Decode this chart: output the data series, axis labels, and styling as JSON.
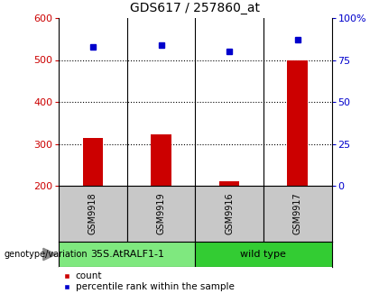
{
  "title": "GDS617 / 257860_at",
  "samples": [
    "GSM9918",
    "GSM9919",
    "GSM9916",
    "GSM9917"
  ],
  "count_values": [
    315,
    322,
    210,
    500
  ],
  "percentile_values": [
    83,
    84,
    80,
    87
  ],
  "groups": [
    {
      "label": "35S.AtRALF1-1",
      "color": "#7FE87F",
      "samples": [
        0,
        1
      ]
    },
    {
      "label": "wild type",
      "color": "#33CC33",
      "samples": [
        2,
        3
      ]
    }
  ],
  "ylim_left": [
    200,
    600
  ],
  "left_ticks": [
    200,
    300,
    400,
    500,
    600
  ],
  "right_ticks": [
    0,
    25,
    50,
    75,
    100
  ],
  "right_tick_labels": [
    "0",
    "25",
    "50",
    "75",
    "100%"
  ],
  "bar_color": "#cc0000",
  "dot_color": "#0000cc",
  "left_tick_color": "#cc0000",
  "right_tick_color": "#0000cc",
  "genotype_label": "genotype/variation",
  "legend_count": "count",
  "legend_percentile": "percentile rank within the sample",
  "bg_color": "#ffffff",
  "sample_box_color": "#c8c8c8",
  "title_fontsize": 10,
  "tick_fontsize": 8,
  "sample_fontsize": 7,
  "group_fontsize": 8,
  "legend_fontsize": 7.5
}
